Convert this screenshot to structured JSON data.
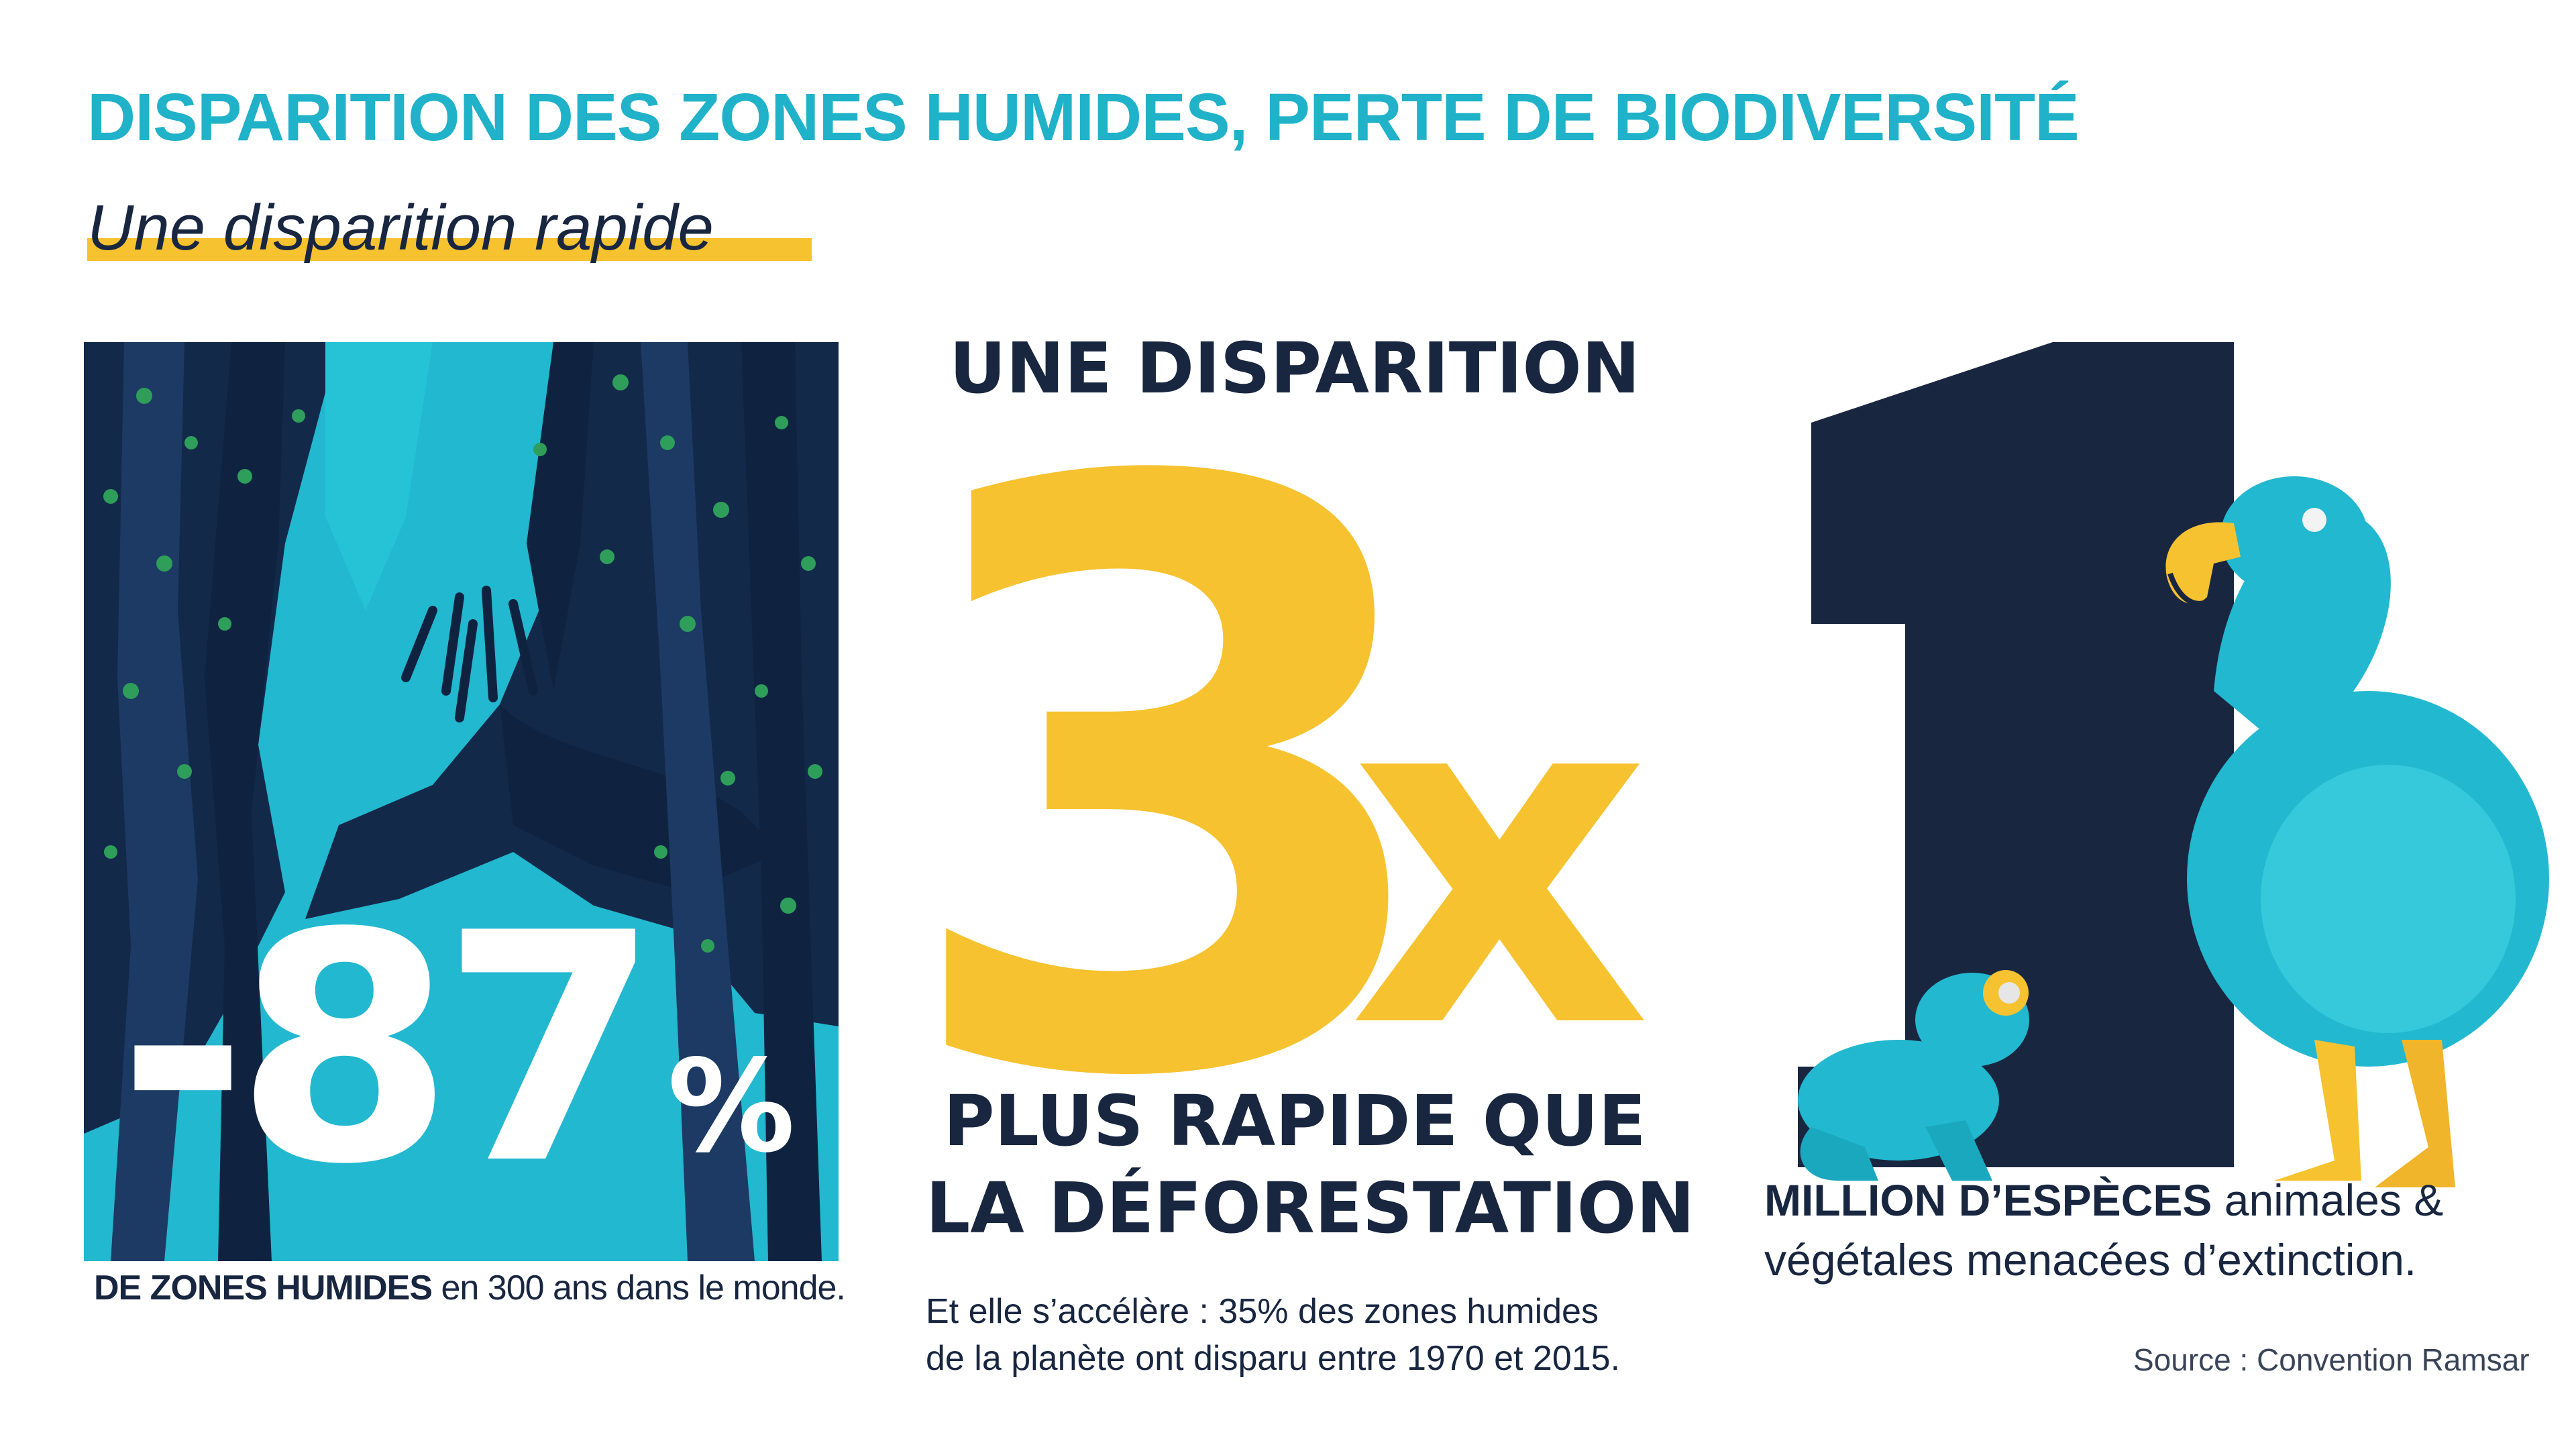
{
  "header": {
    "title": "DISPARITION DES ZONES HUMIDES, PERTE DE BIODIVERSITÉ",
    "subtitle": "Une disparition rapide"
  },
  "left": {
    "stat_value": "-87",
    "stat_unit": "%",
    "caption_bold": "DE ZONES HUMIDES",
    "caption_rest": " en 300 ans  dans le monde."
  },
  "middle": {
    "heading_top": "UNE DISPARITION",
    "big_number": "3",
    "big_suffix": "x",
    "heading_bottom_1": "PLUS RAPIDE QUE",
    "heading_bottom_2": "LA DÉFORESTATION",
    "note_line_1": "Et elle s’accélère : 35% des zones humides",
    "note_line_2": "de la planète ont disparu entre 1970 et 2015."
  },
  "right": {
    "big_number": "1",
    "caption_bold": "MILLION D’ESPÈCES",
    "caption_rest_1": " animales &",
    "caption_line_2": "végétales menacées d’extinction."
  },
  "footer": {
    "source": "Source : Convention Ramsar"
  },
  "colors": {
    "teal": "#1fb2c9",
    "navy": "#182640",
    "yellow": "#f7c22f",
    "forest_dark": "#13294a",
    "water": "#22b8cf"
  },
  "illustrations": {
    "forest": "mangrove-forest-illustration",
    "dodo": "dodo-bird-illustration",
    "frog": "frog-illustration"
  }
}
